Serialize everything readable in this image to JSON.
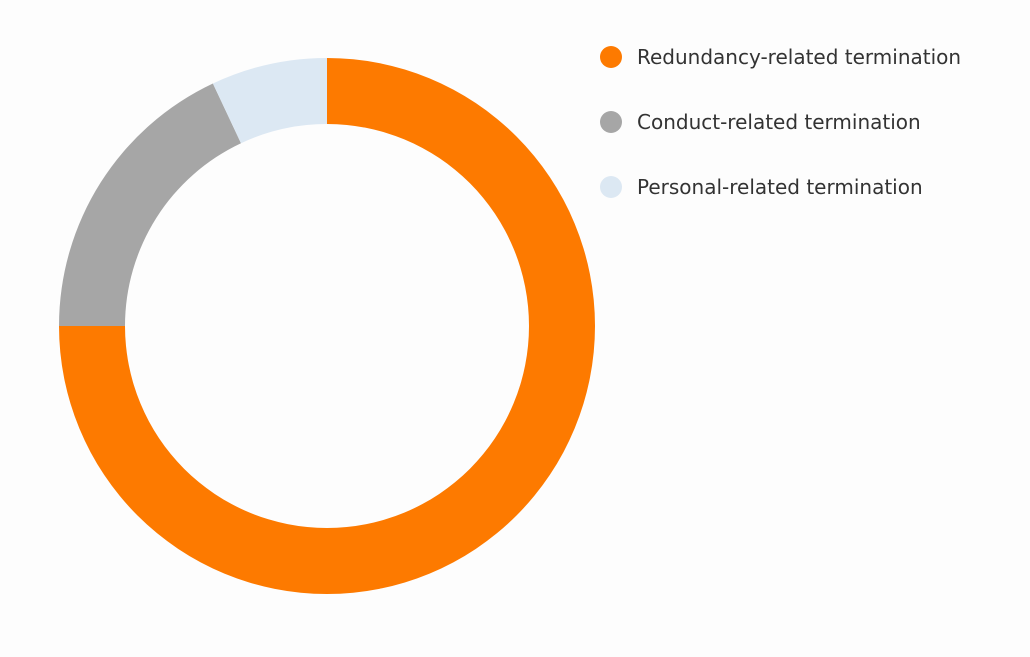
{
  "chart_data": {
    "type": "pie",
    "style": "donut",
    "title": "",
    "legend_placement": "right",
    "categories": [
      "Redundancy-related termination",
      "Conduct-related termination",
      "Personal-related termination"
    ],
    "values": [
      75,
      18,
      7
    ],
    "colors": [
      "#fd7a00",
      "#a6a6a6",
      "#dce8f3"
    ]
  }
}
